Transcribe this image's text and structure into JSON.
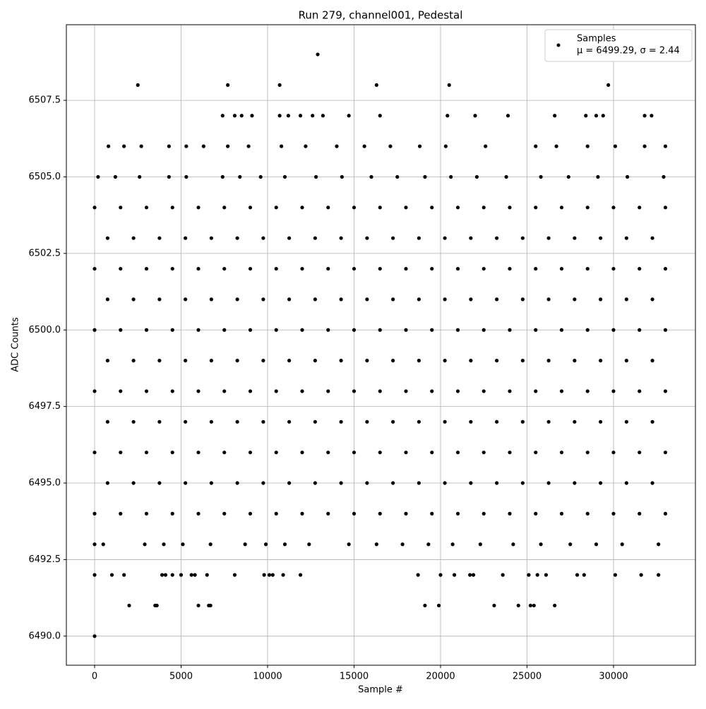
{
  "chart_data": {
    "type": "scatter",
    "title": "Run 279, channel001, Pedestal",
    "x_label": "Sample #",
    "y_label": "ADC Counts",
    "color": "#000000",
    "grid": true,
    "legend_position": "upper right",
    "legend": {
      "name": "Samples",
      "stats": "μ = 6499.29, σ = 2.44"
    },
    "xlim": [
      -1633,
      34735
    ],
    "ylim": [
      6489.05,
      6509.97
    ],
    "xticks": [
      0,
      5000,
      10000,
      15000,
      20000,
      25000,
      30000
    ],
    "yticks": [
      {
        "value": 6490,
        "label": "6490.0"
      },
      {
        "value": 6492.5,
        "label": "6492.5"
      },
      {
        "value": 6495,
        "label": "6495.0"
      },
      {
        "value": 6497.5,
        "label": "6497.5"
      },
      {
        "value": 6500,
        "label": "6500.0"
      },
      {
        "value": 6502.5,
        "label": "6502.5"
      },
      {
        "value": 6505,
        "label": "6505.0"
      },
      {
        "value": 6507.5,
        "label": "6507.5"
      }
    ],
    "x": [
      0,
      2000,
      3500,
      3600,
      6000,
      6600,
      6700,
      19100,
      19900,
      23100,
      24500,
      25200,
      25400,
      26600,
      0,
      1000,
      1700,
      3900,
      4100,
      4500,
      5000,
      5600,
      5800,
      6500,
      8100,
      9800,
      10100,
      10300,
      10900,
      11900,
      18700,
      20000,
      20800,
      21700,
      21900,
      23600,
      25100,
      25600,
      26100,
      27900,
      28300,
      30100,
      31600,
      32600,
      0,
      500,
      2900,
      4000,
      5100,
      6700,
      8700,
      9900,
      11000,
      12400,
      14700,
      16300,
      17800,
      19300,
      20700,
      22300,
      24200,
      25800,
      27500,
      29000,
      30500,
      32600,
      0,
      1500,
      3000,
      4500,
      6000,
      7500,
      9000,
      10500,
      12000,
      13500,
      15000,
      16500,
      18000,
      19500,
      21000,
      22500,
      24000,
      25500,
      27000,
      28500,
      30000,
      31500,
      33000,
      750,
      2250,
      3750,
      5250,
      6750,
      8250,
      9750,
      11250,
      12750,
      14250,
      15750,
      17250,
      18750,
      20250,
      21750,
      23250,
      24750,
      26250,
      27750,
      29250,
      30750,
      32250,
      0,
      1500,
      3000,
      4500,
      6000,
      7500,
      9000,
      10500,
      12000,
      13500,
      15000,
      16500,
      18000,
      19500,
      21000,
      22500,
      24000,
      25500,
      27000,
      28500,
      30000,
      31500,
      33000,
      750,
      2250,
      3750,
      5250,
      6750,
      8250,
      9750,
      11250,
      12750,
      14250,
      15750,
      17250,
      18750,
      20250,
      21750,
      23250,
      24750,
      26250,
      27750,
      29250,
      30750,
      32250,
      0,
      1500,
      3000,
      4500,
      6000,
      7500,
      9000,
      10500,
      12000,
      13500,
      15000,
      16500,
      18000,
      19500,
      21000,
      22500,
      24000,
      25500,
      27000,
      28500,
      30000,
      31500,
      33000,
      750,
      2250,
      3750,
      5250,
      6750,
      8250,
      9750,
      11250,
      12750,
      14250,
      15750,
      17250,
      18750,
      20250,
      21750,
      23250,
      24750,
      26250,
      27750,
      29250,
      30750,
      32250,
      0,
      1500,
      3000,
      4500,
      6000,
      7500,
      9000,
      10500,
      12000,
      13500,
      15000,
      16500,
      18000,
      19500,
      21000,
      22500,
      24000,
      25500,
      27000,
      28500,
      30000,
      31500,
      33000,
      750,
      2250,
      3750,
      5250,
      6750,
      8250,
      9750,
      11250,
      12750,
      14250,
      15750,
      17250,
      18750,
      20250,
      21750,
      23250,
      24750,
      26250,
      27750,
      29250,
      30750,
      32250,
      0,
      1500,
      3000,
      4500,
      6000,
      7500,
      9000,
      10500,
      12000,
      13500,
      15000,
      16500,
      18000,
      19500,
      21000,
      22500,
      24000,
      25500,
      27000,
      28500,
      30000,
      31500,
      33000,
      750,
      2250,
      3750,
      5250,
      6750,
      8250,
      9750,
      11250,
      12750,
      14250,
      15750,
      17250,
      18750,
      20250,
      21750,
      23250,
      24750,
      26250,
      27750,
      29250,
      30750,
      32250,
      0,
      1500,
      3000,
      4500,
      6000,
      7500,
      9000,
      10500,
      12000,
      13500,
      15000,
      16500,
      18000,
      19500,
      21000,
      22500,
      24000,
      25500,
      27000,
      28500,
      30000,
      31500,
      33000,
      200,
      1200,
      2600,
      4300,
      5300,
      7400,
      8400,
      9600,
      11000,
      12800,
      14300,
      16000,
      17500,
      19100,
      20600,
      22100,
      23800,
      25800,
      27400,
      29100,
      30800,
      32900,
      800,
      1700,
      2700,
      4300,
      5300,
      6300,
      7700,
      8900,
      10800,
      12200,
      14000,
      15600,
      17100,
      18800,
      20300,
      22600,
      25500,
      26700,
      28500,
      30100,
      31800,
      33000,
      7400,
      8100,
      8500,
      9100,
      10700,
      11200,
      11900,
      12600,
      13200,
      14700,
      16500,
      20400,
      22000,
      23900,
      26600,
      28400,
      29000,
      29400,
      31800,
      32200,
      2500,
      7700,
      10700,
      16300,
      20500,
      29700,
      12900
    ],
    "values": [
      6490,
      6491,
      6491,
      6491,
      6491,
      6491,
      6491,
      6491,
      6491,
      6491,
      6491,
      6491,
      6491,
      6491,
      6492,
      6492,
      6492,
      6492,
      6492,
      6492,
      6492,
      6492,
      6492,
      6492,
      6492,
      6492,
      6492,
      6492,
      6492,
      6492,
      6492,
      6492,
      6492,
      6492,
      6492,
      6492,
      6492,
      6492,
      6492,
      6492,
      6492,
      6492,
      6492,
      6492,
      6493,
      6493,
      6493,
      6493,
      6493,
      6493,
      6493,
      6493,
      6493,
      6493,
      6493,
      6493,
      6493,
      6493,
      6493,
      6493,
      6493,
      6493,
      6493,
      6493,
      6493,
      6493,
      6494,
      6494,
      6494,
      6494,
      6494,
      6494,
      6494,
      6494,
      6494,
      6494,
      6494,
      6494,
      6494,
      6494,
      6494,
      6494,
      6494,
      6494,
      6494,
      6494,
      6494,
      6494,
      6494,
      6495,
      6495,
      6495,
      6495,
      6495,
      6495,
      6495,
      6495,
      6495,
      6495,
      6495,
      6495,
      6495,
      6495,
      6495,
      6495,
      6495,
      6495,
      6495,
      6495,
      6495,
      6495,
      6496,
      6496,
      6496,
      6496,
      6496,
      6496,
      6496,
      6496,
      6496,
      6496,
      6496,
      6496,
      6496,
      6496,
      6496,
      6496,
      6496,
      6496,
      6496,
      6496,
      6496,
      6496,
      6496,
      6497,
      6497,
      6497,
      6497,
      6497,
      6497,
      6497,
      6497,
      6497,
      6497,
      6497,
      6497,
      6497,
      6497,
      6497,
      6497,
      6497,
      6497,
      6497,
      6497,
      6497,
      6497,
      6498,
      6498,
      6498,
      6498,
      6498,
      6498,
      6498,
      6498,
      6498,
      6498,
      6498,
      6498,
      6498,
      6498,
      6498,
      6498,
      6498,
      6498,
      6498,
      6498,
      6498,
      6498,
      6498,
      6499,
      6499,
      6499,
      6499,
      6499,
      6499,
      6499,
      6499,
      6499,
      6499,
      6499,
      6499,
      6499,
      6499,
      6499,
      6499,
      6499,
      6499,
      6499,
      6499,
      6499,
      6499,
      6500,
      6500,
      6500,
      6500,
      6500,
      6500,
      6500,
      6500,
      6500,
      6500,
      6500,
      6500,
      6500,
      6500,
      6500,
      6500,
      6500,
      6500,
      6500,
      6500,
      6500,
      6500,
      6500,
      6501,
      6501,
      6501,
      6501,
      6501,
      6501,
      6501,
      6501,
      6501,
      6501,
      6501,
      6501,
      6501,
      6501,
      6501,
      6501,
      6501,
      6501,
      6501,
      6501,
      6501,
      6501,
      6502,
      6502,
      6502,
      6502,
      6502,
      6502,
      6502,
      6502,
      6502,
      6502,
      6502,
      6502,
      6502,
      6502,
      6502,
      6502,
      6502,
      6502,
      6502,
      6502,
      6502,
      6502,
      6502,
      6503,
      6503,
      6503,
      6503,
      6503,
      6503,
      6503,
      6503,
      6503,
      6503,
      6503,
      6503,
      6503,
      6503,
      6503,
      6503,
      6503,
      6503,
      6503,
      6503,
      6503,
      6503,
      6504,
      6504,
      6504,
      6504,
      6504,
      6504,
      6504,
      6504,
      6504,
      6504,
      6504,
      6504,
      6504,
      6504,
      6504,
      6504,
      6504,
      6504,
      6504,
      6504,
      6504,
      6504,
      6504,
      6505,
      6505,
      6505,
      6505,
      6505,
      6505,
      6505,
      6505,
      6505,
      6505,
      6505,
      6505,
      6505,
      6505,
      6505,
      6505,
      6505,
      6505,
      6505,
      6505,
      6505,
      6505,
      6506,
      6506,
      6506,
      6506,
      6506,
      6506,
      6506,
      6506,
      6506,
      6506,
      6506,
      6506,
      6506,
      6506,
      6506,
      6506,
      6506,
      6506,
      6506,
      6506,
      6506,
      6506,
      6507,
      6507,
      6507,
      6507,
      6507,
      6507,
      6507,
      6507,
      6507,
      6507,
      6507,
      6507,
      6507,
      6507,
      6507,
      6507,
      6507,
      6507,
      6507,
      6507,
      6508,
      6508,
      6508,
      6508,
      6508,
      6508,
      6509
    ]
  }
}
